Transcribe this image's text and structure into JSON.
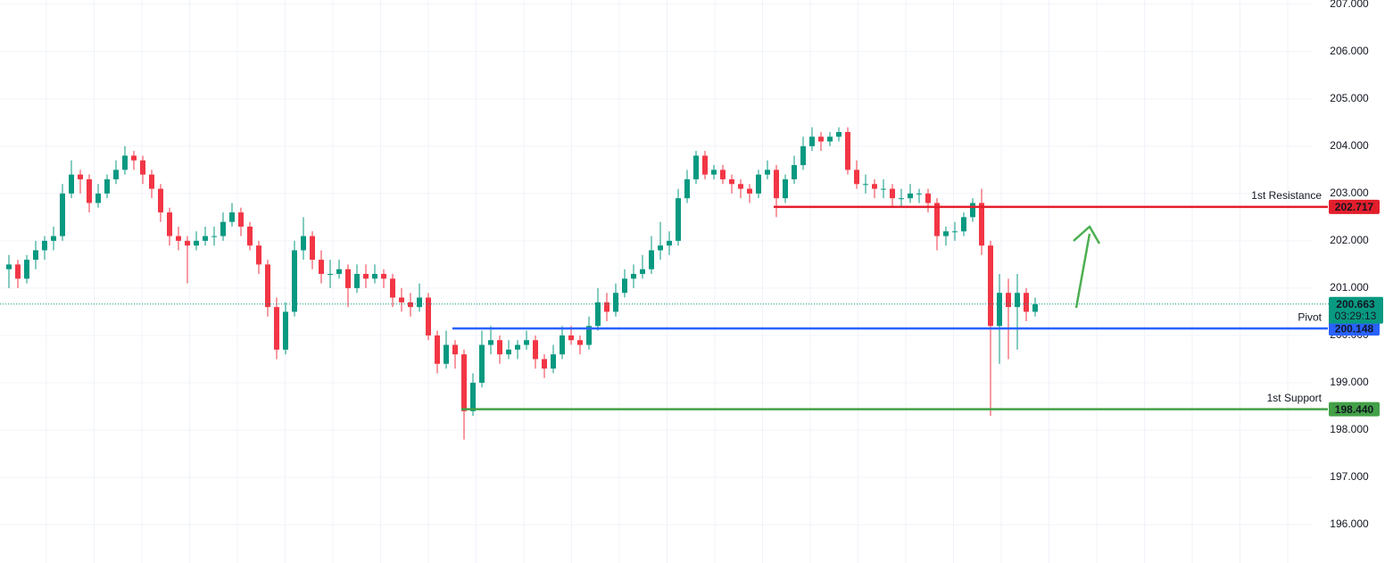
{
  "chart_data": {
    "type": "candlestick",
    "ylim": [
      195.19,
      207.09
    ],
    "yticks": [
      {
        "value": 196,
        "label": "196.000"
      },
      {
        "value": 197,
        "label": "197.000"
      },
      {
        "value": 198,
        "label": "198.000"
      },
      {
        "value": 199,
        "label": "199.000"
      },
      {
        "value": 200,
        "label": "200.000"
      },
      {
        "value": 201,
        "label": "201.000"
      },
      {
        "value": 202,
        "label": "202.000"
      },
      {
        "value": 203,
        "label": "203.000"
      },
      {
        "value": 204,
        "label": "204.000"
      },
      {
        "value": 205,
        "label": "205.000"
      },
      {
        "value": 206,
        "label": "206.000"
      },
      {
        "value": 207,
        "label": "207.000"
      }
    ],
    "grid": true,
    "up_color": "#089981",
    "down_color": "#f23645",
    "candles": [
      [
        201.4,
        201.7,
        201.0,
        201.5
      ],
      [
        201.5,
        201.6,
        201.0,
        201.2
      ],
      [
        201.2,
        201.7,
        201.1,
        201.6
      ],
      [
        201.6,
        202.0,
        201.4,
        201.8
      ],
      [
        201.8,
        202.1,
        201.6,
        202.0
      ],
      [
        202.0,
        202.3,
        201.8,
        202.1
      ],
      [
        202.1,
        203.2,
        202.0,
        203.0
      ],
      [
        203.0,
        203.7,
        202.9,
        203.4
      ],
      [
        203.4,
        203.5,
        203.0,
        203.3
      ],
      [
        203.3,
        203.4,
        202.6,
        202.8
      ],
      [
        202.8,
        203.2,
        202.7,
        203.0
      ],
      [
        203.0,
        203.4,
        202.9,
        203.3
      ],
      [
        203.3,
        203.7,
        203.2,
        203.5
      ],
      [
        203.5,
        204.0,
        203.4,
        203.8
      ],
      [
        203.8,
        203.9,
        203.5,
        203.7
      ],
      [
        203.7,
        203.8,
        203.2,
        203.4
      ],
      [
        203.4,
        203.5,
        202.9,
        203.1
      ],
      [
        203.1,
        203.2,
        202.4,
        202.6
      ],
      [
        202.6,
        202.7,
        201.9,
        202.1
      ],
      [
        202.1,
        202.3,
        201.8,
        202.0
      ],
      [
        202.0,
        202.1,
        201.1,
        201.9
      ],
      [
        201.9,
        202.2,
        201.8,
        202.0
      ],
      [
        202.0,
        202.3,
        201.9,
        202.1
      ],
      [
        202.1,
        202.3,
        201.9,
        202.1
      ],
      [
        202.1,
        202.6,
        202.0,
        202.4
      ],
      [
        202.4,
        202.8,
        202.3,
        202.6
      ],
      [
        202.6,
        202.7,
        202.1,
        202.3
      ],
      [
        202.3,
        202.4,
        201.8,
        201.9
      ],
      [
        201.9,
        202.0,
        201.3,
        201.5
      ],
      [
        201.5,
        201.6,
        200.4,
        200.6
      ],
      [
        200.6,
        200.8,
        199.5,
        199.7
      ],
      [
        199.7,
        200.7,
        199.6,
        200.5
      ],
      [
        200.5,
        202.0,
        200.4,
        201.8
      ],
      [
        201.8,
        202.5,
        201.6,
        202.1
      ],
      [
        202.1,
        202.2,
        201.4,
        201.6
      ],
      [
        201.6,
        201.8,
        201.1,
        201.3
      ],
      [
        201.3,
        201.6,
        201.0,
        201.3
      ],
      [
        201.3,
        201.6,
        201.2,
        201.4
      ],
      [
        201.4,
        201.5,
        200.6,
        201.0
      ],
      [
        201.0,
        201.5,
        200.9,
        201.3
      ],
      [
        201.3,
        201.5,
        201.0,
        201.2
      ],
      [
        201.2,
        201.5,
        201.1,
        201.3
      ],
      [
        201.3,
        201.4,
        201.0,
        201.2
      ],
      [
        201.2,
        201.3,
        200.6,
        200.8
      ],
      [
        200.8,
        201.0,
        200.5,
        200.7
      ],
      [
        200.7,
        200.9,
        200.4,
        200.6
      ],
      [
        200.6,
        201.1,
        200.5,
        200.8
      ],
      [
        200.8,
        200.9,
        199.9,
        200.0
      ],
      [
        200.0,
        200.1,
        199.2,
        199.4
      ],
      [
        199.4,
        200.1,
        199.3,
        199.8
      ],
      [
        199.8,
        199.9,
        199.3,
        199.6
      ],
      [
        199.6,
        199.7,
        197.8,
        198.4
      ],
      [
        198.4,
        199.2,
        198.3,
        199.0
      ],
      [
        199.0,
        200.1,
        198.9,
        199.8
      ],
      [
        199.8,
        200.2,
        199.6,
        199.9
      ],
      [
        199.9,
        200.0,
        199.4,
        199.6
      ],
      [
        199.6,
        199.9,
        199.5,
        199.7
      ],
      [
        199.7,
        199.9,
        199.5,
        199.8
      ],
      [
        199.8,
        200.1,
        199.7,
        199.9
      ],
      [
        199.9,
        200.0,
        199.3,
        199.5
      ],
      [
        199.5,
        199.6,
        199.1,
        199.3
      ],
      [
        199.3,
        199.8,
        199.2,
        199.6
      ],
      [
        199.6,
        200.2,
        199.5,
        200.0
      ],
      [
        200.0,
        200.2,
        199.8,
        199.9
      ],
      [
        199.9,
        200.0,
        199.6,
        199.8
      ],
      [
        199.8,
        200.4,
        199.7,
        200.2
      ],
      [
        200.2,
        201.0,
        200.1,
        200.7
      ],
      [
        200.7,
        200.9,
        200.3,
        200.5
      ],
      [
        200.5,
        201.1,
        200.4,
        200.9
      ],
      [
        200.9,
        201.4,
        200.8,
        201.2
      ],
      [
        201.2,
        201.5,
        201.0,
        201.3
      ],
      [
        201.3,
        201.7,
        201.2,
        201.4
      ],
      [
        201.4,
        202.1,
        201.3,
        201.8
      ],
      [
        201.8,
        202.4,
        201.6,
        201.9
      ],
      [
        201.9,
        202.2,
        201.7,
        202.0
      ],
      [
        202.0,
        203.1,
        201.9,
        202.9
      ],
      [
        202.9,
        203.5,
        202.8,
        203.3
      ],
      [
        203.3,
        203.9,
        203.2,
        203.8
      ],
      [
        203.8,
        203.9,
        203.3,
        203.4
      ],
      [
        203.4,
        203.6,
        203.3,
        203.5
      ],
      [
        203.5,
        203.6,
        203.2,
        203.3
      ],
      [
        203.3,
        203.4,
        203.0,
        203.2
      ],
      [
        203.2,
        203.3,
        202.9,
        203.1
      ],
      [
        203.1,
        203.2,
        202.8,
        203.0
      ],
      [
        203.0,
        203.5,
        202.9,
        203.4
      ],
      [
        203.4,
        203.7,
        203.3,
        203.5
      ],
      [
        203.5,
        203.6,
        202.5,
        202.9
      ],
      [
        202.9,
        203.4,
        202.8,
        203.3
      ],
      [
        203.3,
        203.8,
        203.2,
        203.6
      ],
      [
        203.6,
        204.2,
        203.5,
        204.0
      ],
      [
        204.0,
        204.4,
        203.9,
        204.2
      ],
      [
        204.2,
        204.3,
        203.9,
        204.1
      ],
      [
        204.1,
        204.3,
        204.0,
        204.2
      ],
      [
        204.2,
        204.4,
        204.1,
        204.3
      ],
      [
        204.3,
        204.4,
        203.4,
        203.5
      ],
      [
        203.5,
        203.7,
        203.1,
        203.2
      ],
      [
        203.2,
        203.4,
        203.0,
        203.2
      ],
      [
        203.2,
        203.3,
        202.9,
        203.1
      ],
      [
        203.1,
        203.3,
        202.9,
        203.1
      ],
      [
        203.1,
        203.2,
        202.7,
        202.9
      ],
      [
        202.9,
        203.1,
        202.7,
        202.9
      ],
      [
        202.9,
        203.2,
        202.8,
        203.0
      ],
      [
        203.0,
        203.1,
        202.8,
        203.0
      ],
      [
        203.0,
        203.1,
        202.6,
        202.8
      ],
      [
        202.8,
        202.9,
        201.8,
        202.1
      ],
      [
        202.1,
        202.3,
        201.9,
        202.2
      ],
      [
        202.2,
        202.4,
        202.0,
        202.2
      ],
      [
        202.2,
        202.6,
        202.1,
        202.5
      ],
      [
        202.5,
        202.9,
        202.4,
        202.8
      ],
      [
        202.8,
        203.1,
        201.7,
        201.9
      ],
      [
        201.9,
        202.0,
        198.3,
        200.2
      ],
      [
        200.2,
        201.3,
        199.4,
        200.9
      ],
      [
        200.9,
        201.2,
        199.5,
        200.6
      ],
      [
        200.6,
        201.3,
        199.7,
        200.9
      ],
      [
        200.9,
        201.0,
        200.3,
        200.5
      ],
      [
        200.5,
        200.8,
        200.4,
        200.66
      ]
    ],
    "levels": [
      {
        "name": "1st Resistance",
        "value": 202.717,
        "color": "#e31e2c",
        "start": 86
      },
      {
        "name": "Pivot",
        "value": 200.148,
        "color": "#2962ff",
        "start": 50
      },
      {
        "name": "1st Support",
        "value": 198.44,
        "label": "198.440",
        "color": "#43a047",
        "start": 51
      }
    ],
    "last_price": {
      "value": 200.663,
      "countdown": "03:29:13",
      "color": "#089981"
    }
  }
}
